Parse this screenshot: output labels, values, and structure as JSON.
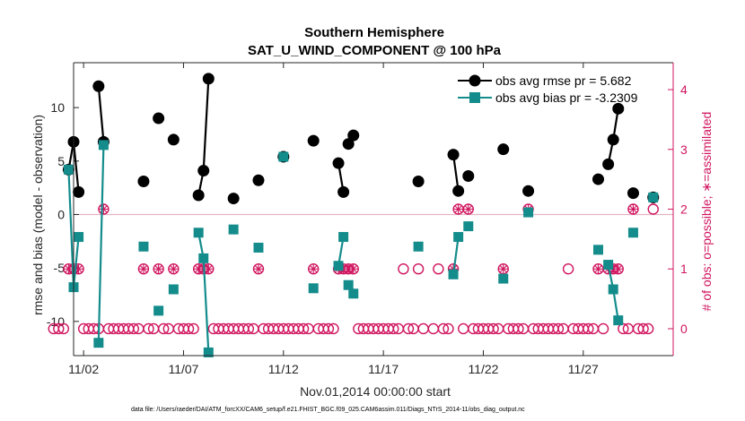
{
  "chart_data": {
    "type": "line",
    "title": "Southern Hemisphere",
    "subtitle": "SAT_U_WIND_COMPONENT @ 100 hPa",
    "xlabel": "Nov.01,2014 00:00:00 start",
    "ylabel": "rmse and bias (model - observation)",
    "ylabel_right": "# of obs: o=possible; ∗=assimilated",
    "footnote": "data file: /Users/raeder/DAI/ATM_forcXX/CAM6_setup/f.e21.FHIST_BGC.f09_025.CAM6assim.011/Diags_NTrS_2014-11/obs_diag_output.nc",
    "xlim": [
      306.0,
      336.0
    ],
    "ylim": [
      -13.2,
      14.2
    ],
    "ylim_right": [
      -0.45,
      4.45
    ],
    "xticks": [
      306.5,
      311.5,
      316.5,
      321.5,
      326.5,
      331.5
    ],
    "xtick_labels": [
      "11/02",
      "11/07",
      "11/12",
      "11/17",
      "11/22",
      "11/27"
    ],
    "yticks": [
      -10,
      -5,
      0,
      5,
      10
    ],
    "yticks_right": [
      0,
      1,
      2,
      3,
      4
    ],
    "zero_line": 0,
    "legend_position": "top-right",
    "colors": {
      "rmse": "#000000",
      "bias": "#148c8c",
      "count": "#d0155f"
    },
    "series": [
      {
        "name": "obs avg rmse pr = 5.682",
        "key": "rmse",
        "segments": [
          [
            [
              305.75,
              4.2
            ],
            [
              306.0,
              6.8
            ],
            [
              306.25,
              2.1
            ]
          ],
          [
            [
              307.25,
              12.0
            ],
            [
              307.5,
              6.8
            ]
          ],
          [
            [
              309.5,
              3.1
            ]
          ],
          [
            [
              310.25,
              9.0
            ]
          ],
          [
            [
              311.0,
              7.0
            ]
          ],
          [
            [
              312.25,
              1.8
            ],
            [
              312.5,
              4.1
            ],
            [
              312.75,
              12.7
            ]
          ],
          [
            [
              314.0,
              1.5
            ]
          ],
          [
            [
              315.25,
              3.2
            ]
          ],
          [
            [
              316.5,
              5.4
            ]
          ],
          [
            [
              318.0,
              6.9
            ]
          ],
          [
            [
              319.25,
              4.8
            ],
            [
              319.5,
              2.1
            ]
          ],
          [
            [
              319.75,
              6.6
            ],
            [
              320.0,
              7.4
            ]
          ],
          [
            [
              323.25,
              3.1
            ]
          ],
          [
            [
              325.0,
              5.6
            ],
            [
              325.25,
              2.2
            ]
          ],
          [
            [
              325.75,
              3.6
            ]
          ],
          [
            [
              327.5,
              6.1
            ]
          ],
          [
            [
              328.75,
              2.2
            ]
          ],
          [
            [
              332.25,
              3.3
            ]
          ],
          [
            [
              332.75,
              4.7
            ],
            [
              333.0,
              7.0
            ],
            [
              333.25,
              9.9
            ]
          ],
          [
            [
              334.0,
              2.0
            ]
          ],
          [
            [
              335.0,
              1.6
            ]
          ]
        ]
      },
      {
        "name": "obs avg bias pr = -3.2309",
        "key": "bias",
        "segments": [
          [
            [
              305.75,
              4.2
            ],
            [
              306.0,
              -6.8
            ],
            [
              306.25,
              -2.1
            ]
          ],
          [
            [
              307.25,
              -12.0
            ],
            [
              307.5,
              6.5
            ]
          ],
          [
            [
              309.5,
              -3.0
            ]
          ],
          [
            [
              310.25,
              -9.0
            ]
          ],
          [
            [
              311.0,
              -7.0
            ]
          ],
          [
            [
              312.25,
              -1.7
            ],
            [
              312.5,
              -4.1
            ],
            [
              312.75,
              -12.9
            ]
          ],
          [
            [
              314.0,
              -1.4
            ]
          ],
          [
            [
              315.25,
              -3.1
            ]
          ],
          [
            [
              316.5,
              5.4
            ]
          ],
          [
            [
              318.0,
              -6.9
            ]
          ],
          [
            [
              319.25,
              -4.8
            ],
            [
              319.5,
              -2.1
            ]
          ],
          [
            [
              319.75,
              -6.6
            ],
            [
              320.0,
              -7.4
            ]
          ],
          [
            [
              323.25,
              -3.0
            ]
          ],
          [
            [
              325.0,
              -5.6
            ],
            [
              325.25,
              -2.1
            ]
          ],
          [
            [
              325.75,
              -1.1
            ]
          ],
          [
            [
              327.5,
              -6.0
            ]
          ],
          [
            [
              328.75,
              0.2
            ]
          ],
          [
            [
              332.25,
              -3.3
            ]
          ],
          [
            [
              332.75,
              -4.7
            ],
            [
              333.0,
              -7.0
            ],
            [
              333.25,
              -9.9
            ]
          ],
          [
            [
              334.0,
              -1.7
            ]
          ],
          [
            [
              335.0,
              1.6
            ]
          ]
        ]
      }
    ],
    "obs_counts": {
      "possible": [
        [
          305.0,
          0
        ],
        [
          305.25,
          0
        ],
        [
          305.5,
          0
        ],
        [
          305.75,
          1
        ],
        [
          306.0,
          1
        ],
        [
          306.25,
          1
        ],
        [
          306.5,
          0
        ],
        [
          306.75,
          0
        ],
        [
          307.0,
          0
        ],
        [
          307.25,
          0
        ],
        [
          307.5,
          2
        ],
        [
          307.75,
          0
        ],
        [
          308.0,
          0
        ],
        [
          308.25,
          0
        ],
        [
          308.5,
          0
        ],
        [
          308.75,
          0
        ],
        [
          309.0,
          0
        ],
        [
          309.25,
          0
        ],
        [
          309.5,
          1
        ],
        [
          309.75,
          0
        ],
        [
          310.0,
          0
        ],
        [
          310.25,
          1
        ],
        [
          310.5,
          0
        ],
        [
          310.75,
          0
        ],
        [
          311.0,
          1
        ],
        [
          311.25,
          0
        ],
        [
          311.5,
          0
        ],
        [
          311.75,
          0
        ],
        [
          312.0,
          0
        ],
        [
          312.25,
          1
        ],
        [
          312.5,
          1
        ],
        [
          312.75,
          1
        ],
        [
          313.0,
          0
        ],
        [
          313.25,
          0
        ],
        [
          313.5,
          0
        ],
        [
          313.75,
          0
        ],
        [
          314.0,
          0
        ],
        [
          314.25,
          0
        ],
        [
          314.5,
          0
        ],
        [
          314.75,
          0
        ],
        [
          315.0,
          0
        ],
        [
          315.25,
          1
        ],
        [
          315.5,
          0
        ],
        [
          315.75,
          0
        ],
        [
          316.0,
          0
        ],
        [
          316.25,
          0
        ],
        [
          316.5,
          0
        ],
        [
          316.75,
          0
        ],
        [
          317.0,
          0
        ],
        [
          317.25,
          0
        ],
        [
          317.5,
          0
        ],
        [
          317.75,
          0
        ],
        [
          318.0,
          1
        ],
        [
          318.25,
          0
        ],
        [
          318.5,
          0
        ],
        [
          318.75,
          0
        ],
        [
          319.0,
          0
        ],
        [
          319.25,
          1
        ],
        [
          319.5,
          1
        ],
        [
          319.75,
          1
        ],
        [
          320.0,
          1
        ],
        [
          320.25,
          0
        ],
        [
          320.5,
          0
        ],
        [
          320.75,
          0
        ],
        [
          321.0,
          0
        ],
        [
          321.25,
          0
        ],
        [
          321.5,
          0
        ],
        [
          321.75,
          0
        ],
        [
          322.0,
          0
        ],
        [
          322.25,
          0
        ],
        [
          322.5,
          1
        ],
        [
          322.75,
          0
        ],
        [
          323.0,
          0
        ],
        [
          323.25,
          1
        ],
        [
          323.5,
          0
        ],
        [
          324.0,
          0
        ],
        [
          324.25,
          1
        ],
        [
          324.5,
          0
        ],
        [
          324.75,
          0
        ],
        [
          325.0,
          1
        ],
        [
          325.25,
          2
        ],
        [
          325.5,
          0
        ],
        [
          325.75,
          2
        ],
        [
          326.0,
          0
        ],
        [
          326.25,
          0
        ],
        [
          326.5,
          0
        ],
        [
          326.75,
          0
        ],
        [
          327.0,
          0
        ],
        [
          327.25,
          0
        ],
        [
          327.5,
          1
        ],
        [
          327.75,
          0
        ],
        [
          328.0,
          0
        ],
        [
          328.25,
          0
        ],
        [
          328.5,
          0
        ],
        [
          328.75,
          2
        ],
        [
          329.0,
          0
        ],
        [
          329.25,
          0
        ],
        [
          329.5,
          0
        ],
        [
          329.75,
          0
        ],
        [
          330.0,
          0
        ],
        [
          330.25,
          0
        ],
        [
          330.5,
          0
        ],
        [
          330.75,
          1
        ],
        [
          331.0,
          0
        ],
        [
          331.25,
          0
        ],
        [
          331.5,
          0
        ],
        [
          331.75,
          0
        ],
        [
          332.0,
          0
        ],
        [
          332.25,
          1
        ],
        [
          332.5,
          0
        ],
        [
          332.75,
          1
        ],
        [
          333.0,
          1
        ],
        [
          333.25,
          1
        ],
        [
          333.5,
          0
        ],
        [
          333.75,
          0
        ],
        [
          334.0,
          2
        ],
        [
          334.25,
          0
        ],
        [
          334.5,
          0
        ],
        [
          334.75,
          0
        ],
        [
          335.0,
          2
        ]
      ],
      "assimilated": [
        [
          305.75,
          1
        ],
        [
          306.0,
          1
        ],
        [
          306.25,
          1
        ],
        [
          307.5,
          2
        ],
        [
          309.5,
          1
        ],
        [
          310.25,
          1
        ],
        [
          311.0,
          1
        ],
        [
          312.25,
          1
        ],
        [
          312.5,
          1
        ],
        [
          312.75,
          1
        ],
        [
          315.25,
          1
        ],
        [
          318.0,
          1
        ],
        [
          319.25,
          1
        ],
        [
          319.5,
          1
        ],
        [
          319.75,
          1
        ],
        [
          320.0,
          1
        ],
        [
          325.0,
          1
        ],
        [
          325.25,
          2
        ],
        [
          325.75,
          2
        ],
        [
          327.5,
          1
        ],
        [
          328.75,
          2
        ],
        [
          332.25,
          1
        ],
        [
          332.75,
          1
        ],
        [
          333.0,
          1
        ],
        [
          333.25,
          1
        ],
        [
          334.0,
          2
        ]
      ]
    }
  }
}
